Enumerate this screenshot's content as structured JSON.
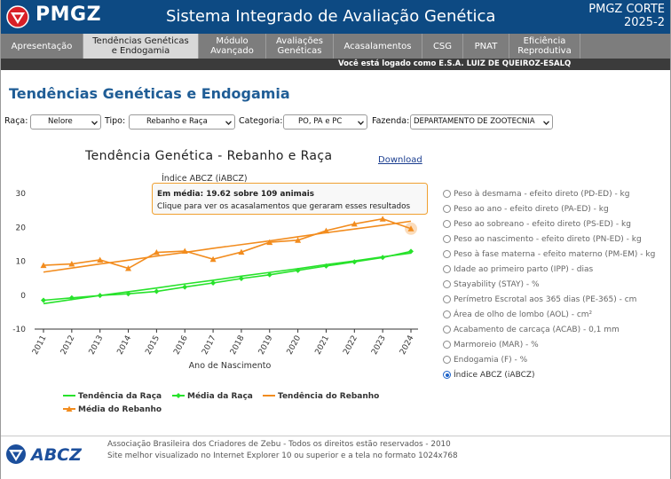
{
  "header": {
    "brand": "PMGZ",
    "system_title": "Sistema Integrado de Avaliação Genética",
    "corner_line1": "PMGZ CORTE",
    "corner_line2": "2025-2"
  },
  "nav": {
    "items": [
      {
        "line1": "Apresentação",
        "line2": ""
      },
      {
        "line1": "Tendências Genéticas",
        "line2": "e Endogamia"
      },
      {
        "line1": "Módulo",
        "line2": "Avançado"
      },
      {
        "line1": "Avaliações",
        "line2": "Genéticas"
      },
      {
        "line1": "Acasalamentos",
        "line2": ""
      },
      {
        "line1": "CSG",
        "line2": ""
      },
      {
        "line1": "PNAT",
        "line2": ""
      },
      {
        "line1": "Eficiência",
        "line2": "Reprodutiva"
      }
    ],
    "active_index": 1
  },
  "login_text": "Você está logado como E.S.A. LUIZ DE QUEIROZ-ESALQ",
  "page_title": "Tendências Genéticas e Endogamia",
  "filters": {
    "raca_label": "Raça:",
    "raca_value": "Nelore",
    "tipo_label": "Tipo:",
    "tipo_value": "Rebanho e Raça",
    "categoria_label": "Categoria:",
    "categoria_value": "PO, PA e PC",
    "fazenda_label": "Fazenda:",
    "fazenda_value": "DEPARTAMENTO DE ZOOTECNIA"
  },
  "download_label": "Download",
  "tooltip": {
    "line1": "Em média: 19.62 sobre 109 animais",
    "line2": "Clique para ver os acasalamentos que geraram esses resultados"
  },
  "options": [
    "Peso à desmama - efeito direto (PD-ED) - kg",
    "Peso ao ano - efeito direto (PA-ED) - kg",
    "Peso ao sobreano - efeito direto (PS-ED) - kg",
    "Peso ao nascimento - efeito direto (PN-ED) - kg",
    "Peso à fase materna - efeito materno (PM-EM) - kg",
    "Idade ao primeiro parto (IPP) - dias",
    "Stayability (STAY) - %",
    "Perímetro Escrotal aos 365 dias (PE-365) - cm",
    "Área de olho de lombo (AOL) - cm²",
    "Acabamento de carcaça (ACAB) - 0,1 mm",
    "Marmoreio (MAR) - %",
    "Endogamia (F) - %",
    "Índice ABCZ (iABCZ)"
  ],
  "selected_option": 12,
  "colors": {
    "header_bg": "#0d4a83",
    "nav_bg": "#7d7d7d",
    "title_blue": "#1f5d96",
    "raca_green": "#27e22b",
    "rebanho_orange": "#f28c1e"
  },
  "footer": {
    "line1": "Associação Brasileira dos Criadores de Zebu - Todos os direitos estão reservados - 2010",
    "line2": "Site melhor visualizado no Internet Explorer 10 ou superior e a tela no formato 1024x768",
    "logo_text": "ABCZ"
  },
  "chart_data": {
    "type": "line",
    "title": "Tendência Genética - Rebanho e Raça",
    "subtitle": "Índice ABCZ (iABCZ)",
    "xlabel": "Ano de Nascimento",
    "ylabel": "",
    "x": [
      "2011",
      "2012",
      "2013",
      "2014",
      "2015",
      "2016",
      "2017",
      "2018",
      "2019",
      "2020",
      "2021",
      "2022",
      "2023",
      "2024"
    ],
    "ylim": [
      -10,
      30
    ],
    "yticks": [
      -10,
      0,
      10,
      20,
      30
    ],
    "grid": false,
    "legend_position": "bottom",
    "series": [
      {
        "name": "Tendência da Raça",
        "kind": "line",
        "color": "#27e22b",
        "values": [
          -2.5,
          -1.3,
          -0.1,
          1.0,
          2.1,
          3.3,
          4.4,
          5.6,
          6.7,
          7.8,
          9.0,
          10.1,
          11.3,
          12.4
        ]
      },
      {
        "name": "Média da Raça",
        "kind": "line+diamond",
        "color": "#27e22b",
        "values": [
          -1.5,
          -0.8,
          -0.1,
          0.4,
          1.1,
          2.4,
          3.6,
          4.9,
          6.0,
          7.3,
          8.6,
          9.8,
          11.1,
          12.9
        ]
      },
      {
        "name": "Tendência do Rebanho",
        "kind": "line",
        "color": "#f28c1e",
        "values": [
          6.8,
          8.0,
          9.2,
          10.3,
          11.5,
          12.6,
          13.8,
          14.9,
          16.0,
          17.2,
          18.4,
          19.5,
          20.6,
          21.8
        ]
      },
      {
        "name": "Média do Rebanho",
        "kind": "line+triangle",
        "color": "#f28c1e",
        "values": [
          8.8,
          9.2,
          10.4,
          7.9,
          12.6,
          13.0,
          10.6,
          12.7,
          15.6,
          16.2,
          19.0,
          21.0,
          22.5,
          19.6
        ]
      }
    ]
  }
}
